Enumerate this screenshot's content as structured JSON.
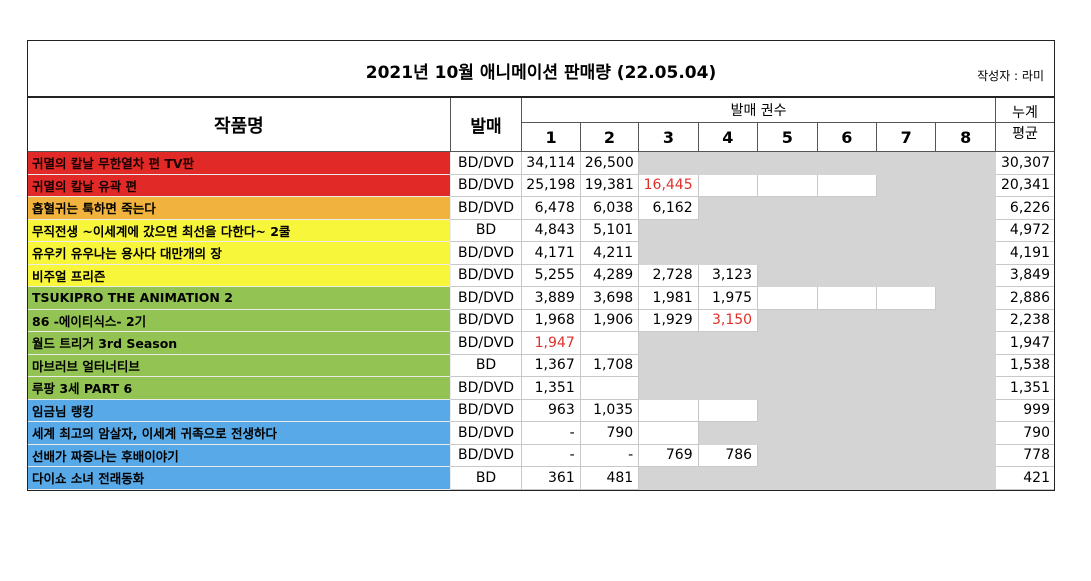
{
  "title": "2021년 10월 애니메이션 판매량 (22.05.04)",
  "author": "작성자 : 라미",
  "headers": {
    "name": "작품명",
    "format": "발매",
    "volumes_group": "발매 권수",
    "volumes": [
      "1",
      "2",
      "3",
      "4",
      "5",
      "6",
      "7",
      "8"
    ],
    "sum_top": "누계",
    "sum_bottom": "평균"
  },
  "colors": {
    "red": "#e12a27",
    "orange": "#f1b23e",
    "yellow": "#f7f63a",
    "green": "#92c353",
    "blue": "#57a9e8",
    "highlight_text": "#e0302a",
    "unreleased_cell": "#d4d4d4"
  },
  "rows": [
    {
      "name": "귀멸의 칼날 무한열차 편 TV판",
      "format": "BD/DVD",
      "color": "red",
      "v": [
        "34,114",
        "26,500",
        "",
        "",
        "",
        "",
        "",
        ""
      ],
      "state": [
        "n",
        "n",
        "g",
        "g",
        "g",
        "g",
        "g",
        "g"
      ],
      "avg": "30,307"
    },
    {
      "name": "귀멸의 칼날 유곽 편",
      "format": "BD/DVD",
      "color": "red",
      "v": [
        "25,198",
        "19,381",
        "16,445",
        "",
        "",
        "",
        "",
        ""
      ],
      "state": [
        "n",
        "n",
        "r",
        "e",
        "e",
        "e",
        "g",
        "g"
      ],
      "avg": "20,341"
    },
    {
      "name": "흡혈귀는 툭하면 죽는다",
      "format": "BD/DVD",
      "color": "orange",
      "v": [
        "6,478",
        "6,038",
        "6,162",
        "",
        "",
        "",
        "",
        ""
      ],
      "state": [
        "n",
        "n",
        "n",
        "g",
        "g",
        "g",
        "g",
        "g"
      ],
      "avg": "6,226"
    },
    {
      "name": "무직전생 ~이세계에 갔으면 최선을 다한다~ 2쿨",
      "format": "BD",
      "color": "yellow",
      "v": [
        "4,843",
        "5,101",
        "",
        "",
        "",
        "",
        "",
        ""
      ],
      "state": [
        "n",
        "n",
        "g",
        "g",
        "g",
        "g",
        "g",
        "g"
      ],
      "avg": "4,972"
    },
    {
      "name": "유우키 유우나는 용사다 대만개의 장",
      "format": "BD/DVD",
      "color": "yellow",
      "v": [
        "4,171",
        "4,211",
        "",
        "",
        "",
        "",
        "",
        ""
      ],
      "state": [
        "n",
        "n",
        "g",
        "g",
        "g",
        "g",
        "g",
        "g"
      ],
      "avg": "4,191"
    },
    {
      "name": "비주얼 프리즌",
      "format": "BD/DVD",
      "color": "yellow",
      "v": [
        "5,255",
        "4,289",
        "2,728",
        "3,123",
        "",
        "",
        "",
        ""
      ],
      "state": [
        "n",
        "n",
        "n",
        "n",
        "g",
        "g",
        "g",
        "g"
      ],
      "avg": "3,849"
    },
    {
      "name": "TSUKIPRO THE ANIMATION 2",
      "format": "BD/DVD",
      "color": "green",
      "v": [
        "3,889",
        "3,698",
        "1,981",
        "1,975",
        "",
        "",
        "",
        ""
      ],
      "state": [
        "n",
        "n",
        "n",
        "n",
        "e",
        "e",
        "e",
        "g"
      ],
      "avg": "2,886"
    },
    {
      "name": "86 -에이티식스- 2기",
      "format": "BD/DVD",
      "color": "green",
      "v": [
        "1,968",
        "1,906",
        "1,929",
        "3,150",
        "",
        "",
        "",
        ""
      ],
      "state": [
        "n",
        "n",
        "n",
        "r",
        "g",
        "g",
        "g",
        "g"
      ],
      "avg": "2,238"
    },
    {
      "name": "월드 트리거 3rd Season",
      "format": "BD/DVD",
      "color": "green",
      "v": [
        "1,947",
        "",
        "",
        "",
        "",
        "",
        "",
        ""
      ],
      "state": [
        "r",
        "e",
        "g",
        "g",
        "g",
        "g",
        "g",
        "g"
      ],
      "avg": "1,947"
    },
    {
      "name": "마브러브 얼터너티브",
      "format": "BD",
      "color": "green",
      "v": [
        "1,367",
        "1,708",
        "",
        "",
        "",
        "",
        "",
        ""
      ],
      "state": [
        "n",
        "n",
        "g",
        "g",
        "g",
        "g",
        "g",
        "g"
      ],
      "avg": "1,538"
    },
    {
      "name": "루팡 3세 PART 6",
      "format": "BD/DVD",
      "color": "green",
      "v": [
        "1,351",
        "",
        "",
        "",
        "",
        "",
        "",
        ""
      ],
      "state": [
        "n",
        "e",
        "g",
        "g",
        "g",
        "g",
        "g",
        "g"
      ],
      "avg": "1,351"
    },
    {
      "name": "임금님 랭킹",
      "format": "BD/DVD",
      "color": "blue",
      "v": [
        "963",
        "1,035",
        "",
        "",
        "",
        "",
        "",
        ""
      ],
      "state": [
        "n",
        "n",
        "e",
        "e",
        "g",
        "g",
        "g",
        "g"
      ],
      "avg": "999"
    },
    {
      "name": "세계 최고의 암살자, 이세계 귀족으로 전생하다",
      "format": "BD/DVD",
      "color": "blue",
      "v": [
        "-",
        "790",
        "",
        "",
        "",
        "",
        "",
        ""
      ],
      "state": [
        "n",
        "n",
        "e",
        "g",
        "g",
        "g",
        "g",
        "g"
      ],
      "avg": "790"
    },
    {
      "name": "선배가 짜증나는 후배이야기",
      "format": "BD/DVD",
      "color": "blue",
      "v": [
        "-",
        "-",
        "769",
        "786",
        "",
        "",
        "",
        ""
      ],
      "state": [
        "n",
        "n",
        "n",
        "n",
        "g",
        "g",
        "g",
        "g"
      ],
      "avg": "778"
    },
    {
      "name": "다이쇼 소녀 전래동화",
      "format": "BD",
      "color": "blue",
      "v": [
        "361",
        "481",
        "",
        "",
        "",
        "",
        "",
        ""
      ],
      "state": [
        "n",
        "n",
        "g",
        "g",
        "g",
        "g",
        "g",
        "g"
      ],
      "avg": "421"
    }
  ]
}
